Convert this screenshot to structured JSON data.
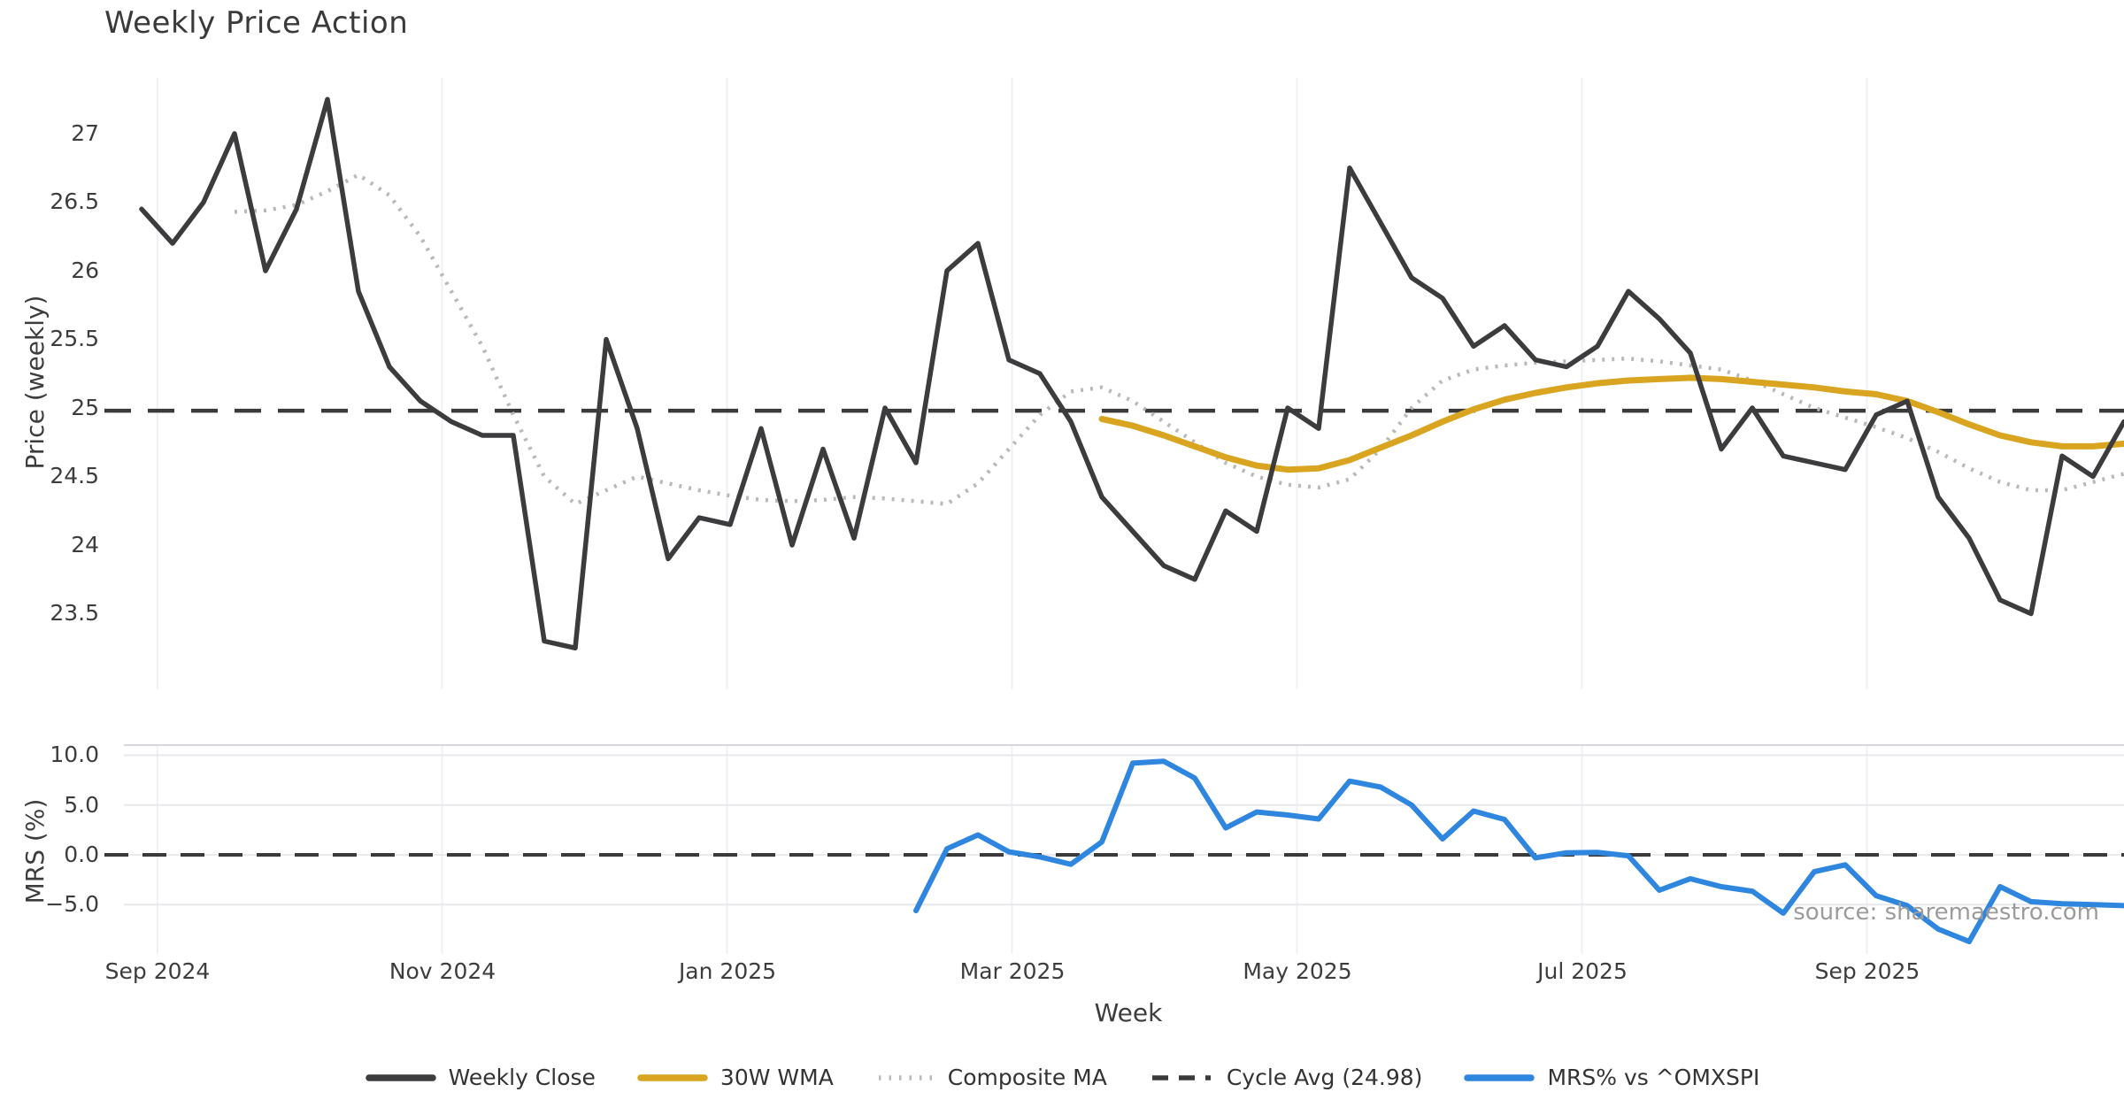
{
  "title": "Weekly Price Action",
  "source_note": "source: sharemaestro.com",
  "colors": {
    "close": "#3c3c3e",
    "wma": "#d9a521",
    "composite": "#b9b9b9",
    "cycle": "#3a3a3a",
    "mrs": "#2e86de",
    "grid_vertical": "#eef0f6",
    "grid_horizontal": "#e8e8ed",
    "panel_spine": "#d6d6dc",
    "text": "#3d3d3d",
    "muted": "#9b9b9b"
  },
  "legend": [
    {
      "label": "Weekly Close",
      "style": "solid",
      "color": "#3c3c3e"
    },
    {
      "label": "30W WMA",
      "style": "solid",
      "color": "#d9a521"
    },
    {
      "label": "Composite MA",
      "style": "dotted",
      "color": "#b9b9b9"
    },
    {
      "label": "Cycle Avg (24.98)",
      "style": "dashed",
      "color": "#3a3a3a"
    },
    {
      "label": "MRS% vs ^OMXSPI",
      "style": "solid",
      "color": "#2e86de"
    }
  ],
  "x_axis": {
    "label": "Week",
    "ticks": [
      {
        "label": "Sep 2024",
        "index": 0.51
      },
      {
        "label": "Nov 2024",
        "index": 9.7
      },
      {
        "label": "Jan 2025",
        "index": 18.9
      },
      {
        "label": "Mar 2025",
        "index": 28.1
      },
      {
        "label": "May 2025",
        "index": 37.3
      },
      {
        "label": "Jul 2025",
        "index": 46.5
      },
      {
        "label": "Sep 2025",
        "index": 55.7
      }
    ]
  },
  "chart_data": [
    {
      "type": "line",
      "title": "Weekly Price Action",
      "xlabel": "Week",
      "ylabel": "Price (weekly)",
      "ylim": [
        23.1,
        27.4
      ],
      "yticks": [
        27,
        26.5,
        26,
        25.5,
        25,
        24.5,
        24,
        23.5
      ],
      "ytick_labels": [
        "27",
        "26.5",
        "26",
        "25.5",
        "25",
        "24.5",
        "24",
        "23.5"
      ],
      "cycle_avg": 24.98,
      "n_points": 65,
      "grid": "vertical-months-only",
      "legend_position": "bottom-center",
      "series": [
        {
          "name": "Weekly Close",
          "start_index": 0,
          "values": [
            26.45,
            26.2,
            26.5,
            27.0,
            26.0,
            26.45,
            27.25,
            25.85,
            25.3,
            25.05,
            24.9,
            24.8,
            24.8,
            23.3,
            23.25,
            25.5,
            24.85,
            23.9,
            24.2,
            24.15,
            24.85,
            24.0,
            24.7,
            24.05,
            25.0,
            24.6,
            26.0,
            26.2,
            25.35,
            25.25,
            24.9,
            24.35,
            24.1,
            23.85,
            23.75,
            24.25,
            24.1,
            25.0,
            24.85,
            26.75,
            26.35,
            25.95,
            25.8,
            25.45,
            25.6,
            25.35,
            25.3,
            25.45,
            25.85,
            25.65,
            25.4,
            24.7,
            25.0,
            24.65,
            24.6,
            24.55,
            24.95,
            25.05,
            24.35,
            24.05,
            23.6,
            23.5,
            24.65,
            24.5,
            24.9
          ]
        },
        {
          "name": "30W WMA",
          "start_index": 31,
          "values": [
            24.92,
            24.87,
            24.8,
            24.72,
            24.64,
            24.58,
            24.55,
            24.56,
            24.62,
            24.71,
            24.8,
            24.9,
            24.99,
            25.06,
            25.11,
            25.15,
            25.18,
            25.2,
            25.21,
            25.22,
            25.21,
            25.19,
            25.17,
            25.15,
            25.12,
            25.1,
            25.05,
            24.97,
            24.88,
            24.8,
            24.75,
            24.72,
            24.72,
            24.74
          ]
        },
        {
          "name": "Composite MA",
          "start_index": 3,
          "values": [
            26.43,
            26.44,
            26.48,
            26.58,
            26.7,
            26.55,
            26.25,
            25.85,
            25.45,
            24.95,
            24.5,
            24.3,
            24.4,
            24.5,
            24.45,
            24.4,
            24.36,
            24.33,
            24.32,
            24.33,
            24.35,
            24.34,
            24.32,
            24.3,
            24.45,
            24.7,
            24.95,
            25.12,
            25.15,
            25.05,
            24.9,
            24.75,
            24.6,
            24.5,
            24.44,
            24.42,
            24.48,
            24.7,
            25.0,
            25.2,
            25.28,
            25.31,
            25.33,
            25.34,
            25.35,
            25.36,
            25.34,
            25.31,
            25.28,
            25.2,
            25.1,
            25.0,
            24.93,
            24.86,
            24.78,
            24.68,
            24.56,
            24.46,
            24.4,
            24.4,
            24.46,
            24.52
          ]
        }
      ]
    },
    {
      "type": "line",
      "xlabel": "Week",
      "ylabel": "MRS (%)",
      "ylim": [
        -10.5,
        11.0
      ],
      "yticks": [
        10.0,
        5.0,
        0.0,
        -5.0
      ],
      "ytick_labels": [
        "10.0",
        "5.0",
        "0.0",
        "−5.0"
      ],
      "zero_line": 0.0,
      "series": [
        {
          "name": "MRS% vs ^OMXSPI",
          "start_index": 25,
          "values": [
            -5.6,
            0.6,
            2.0,
            0.3,
            -0.2,
            -0.95,
            1.3,
            9.2,
            9.4,
            7.7,
            2.7,
            4.3,
            4.0,
            3.6,
            7.4,
            6.8,
            5.0,
            1.6,
            4.4,
            3.55,
            -0.3,
            0.2,
            0.25,
            -0.1,
            -3.55,
            -2.4,
            -3.2,
            -3.65,
            -5.85,
            -1.7,
            -1.0,
            -4.1,
            -5.1,
            -7.45,
            -8.7,
            -3.2,
            -4.7,
            -4.9,
            -5.0,
            -5.1
          ]
        }
      ]
    }
  ]
}
